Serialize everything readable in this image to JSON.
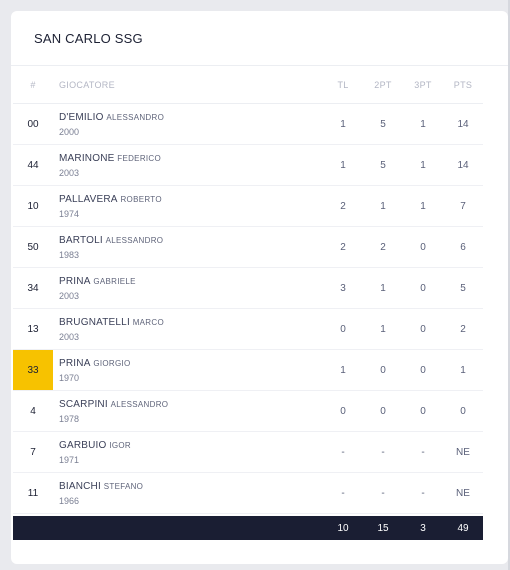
{
  "team": {
    "title": "SAN CARLO SSG"
  },
  "columns": {
    "num": "#",
    "player": "GIOCATORE",
    "tl": "TL",
    "pt2": "2PT",
    "pt3": "3PT",
    "pts": "PTS"
  },
  "players": [
    {
      "num": "00",
      "surname": "D'EMILIO",
      "firstname": "ALESSANDRO",
      "year": "2000",
      "tl": "1",
      "pt2": "5",
      "pt3": "1",
      "pts": "14",
      "highlight": false
    },
    {
      "num": "44",
      "surname": "MARINONE",
      "firstname": "FEDERICO",
      "year": "2003",
      "tl": "1",
      "pt2": "5",
      "pt3": "1",
      "pts": "14",
      "highlight": false
    },
    {
      "num": "10",
      "surname": "PALLAVERA",
      "firstname": "ROBERTO",
      "year": "1974",
      "tl": "2",
      "pt2": "1",
      "pt3": "1",
      "pts": "7",
      "highlight": false
    },
    {
      "num": "50",
      "surname": "BARTOLI",
      "firstname": "ALESSANDRO",
      "year": "1983",
      "tl": "2",
      "pt2": "2",
      "pt3": "0",
      "pts": "6",
      "highlight": false
    },
    {
      "num": "34",
      "surname": "PRINA",
      "firstname": "GABRIELE",
      "year": "2003",
      "tl": "3",
      "pt2": "1",
      "pt3": "0",
      "pts": "5",
      "highlight": false
    },
    {
      "num": "13",
      "surname": "BRUGNATELLI",
      "firstname": "MARCO",
      "year": "2003",
      "tl": "0",
      "pt2": "1",
      "pt3": "0",
      "pts": "2",
      "highlight": false
    },
    {
      "num": "33",
      "surname": "PRINA",
      "firstname": "GIORGIO",
      "year": "1970",
      "tl": "1",
      "pt2": "0",
      "pt3": "0",
      "pts": "1",
      "highlight": true
    },
    {
      "num": "4",
      "surname": "SCARPINI",
      "firstname": "ALESSANDRO",
      "year": "1978",
      "tl": "0",
      "pt2": "0",
      "pt3": "0",
      "pts": "0",
      "highlight": false
    },
    {
      "num": "7",
      "surname": "GARBUIO",
      "firstname": "IGOR",
      "year": "1971",
      "tl": "-",
      "pt2": "-",
      "pt3": "-",
      "pts": "NE",
      "highlight": false
    },
    {
      "num": "11",
      "surname": "BIANCHI",
      "firstname": "STEFANO",
      "year": "1966",
      "tl": "-",
      "pt2": "-",
      "pt3": "-",
      "pts": "NE",
      "highlight": false
    }
  ],
  "totals": {
    "tl": "10",
    "pt2": "15",
    "pt3": "3",
    "pts": "49"
  },
  "colors": {
    "highlight": "#f7c200",
    "totals_bg": "#1a1e33",
    "page_bg": "#e9eaee"
  }
}
